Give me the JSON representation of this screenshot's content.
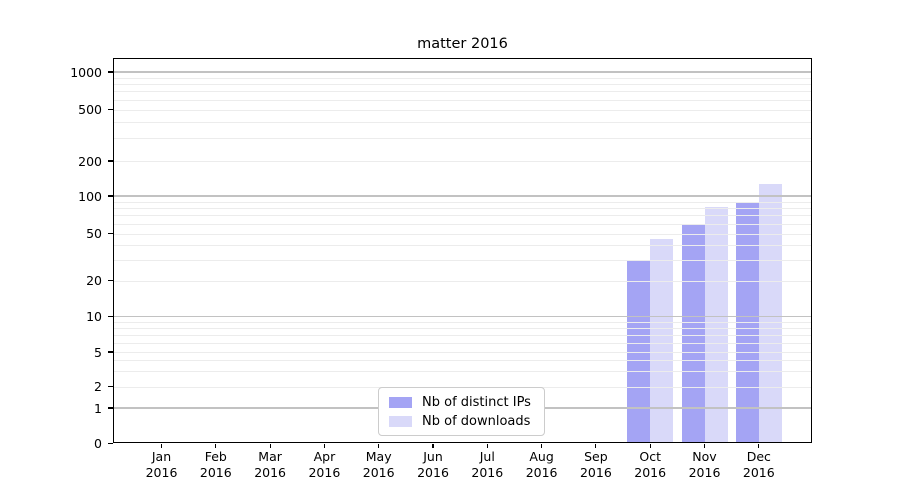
{
  "chart_data": {
    "type": "bar",
    "title": "matter 2016",
    "categories": [
      "Jan 2016",
      "Feb 2016",
      "Mar 2016",
      "Apr 2016",
      "May 2016",
      "Jun 2016",
      "Jul 2016",
      "Aug 2016",
      "Sep 2016",
      "Oct 2016",
      "Nov 2016",
      "Dec 2016"
    ],
    "series": [
      {
        "name": "Nb of distinct IPs",
        "color": "#a4a4f4",
        "values": [
          0,
          0,
          0,
          0,
          0,
          0,
          0,
          0,
          0,
          30,
          60,
          90
        ]
      },
      {
        "name": "Nb of downloads",
        "color": "#d9d9f9",
        "values": [
          0,
          0,
          0,
          0,
          0,
          0,
          0,
          0,
          0,
          45,
          82,
          126
        ]
      }
    ],
    "xlabel": "",
    "ylabel": "",
    "y_scale": "symlog",
    "y_ticks": [
      0,
      1,
      2,
      5,
      10,
      20,
      50,
      100,
      200,
      500,
      1000
    ],
    "ylim": [
      0,
      1300
    ],
    "grid": true,
    "legend_position": "lower center"
  },
  "colors": {
    "major_gridline": "#c2c2c2",
    "minor_gridline": "#ececec",
    "axis": "#000000",
    "background": "#ffffff",
    "legend_border": "#cccccc",
    "text": "#000000"
  }
}
